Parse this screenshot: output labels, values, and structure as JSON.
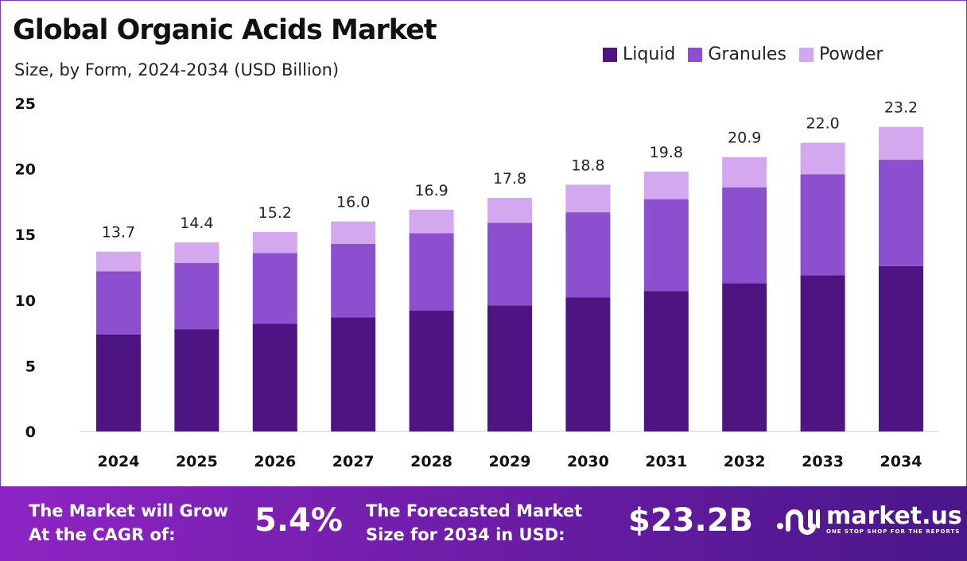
{
  "chart_data": {
    "type": "bar",
    "stacked": true,
    "title": "Global Organic Acids Market",
    "subtitle": "Size, by Form, 2024-2034 (USD Billion)",
    "categories": [
      "2024",
      "2025",
      "2026",
      "2027",
      "2028",
      "2029",
      "2030",
      "2031",
      "2032",
      "2033",
      "2034"
    ],
    "series": [
      {
        "name": "Liquid",
        "color": "#4e1482",
        "values": [
          7.4,
          7.8,
          8.2,
          8.7,
          9.2,
          9.6,
          10.2,
          10.7,
          11.3,
          11.9,
          12.6
        ]
      },
      {
        "name": "Granules",
        "color": "#8c4fd0",
        "values": [
          4.8,
          5.05,
          5.4,
          5.6,
          5.9,
          6.3,
          6.5,
          7.0,
          7.3,
          7.7,
          8.1
        ]
      },
      {
        "name": "Powder",
        "color": "#d3a8ee",
        "values": [
          1.5,
          1.55,
          1.6,
          1.7,
          1.8,
          1.9,
          2.1,
          2.1,
          2.3,
          2.4,
          2.5
        ]
      }
    ],
    "totals": [
      "13.7",
      "14.4",
      "15.2",
      "16.0",
      "16.9",
      "17.8",
      "18.8",
      "19.8",
      "20.9",
      "22.0",
      "23.2"
    ],
    "yticks": [
      "0",
      "5",
      "10",
      "15",
      "20",
      "25"
    ],
    "ylim": [
      0,
      25
    ],
    "grid": false,
    "legend": "top-right"
  },
  "footer": {
    "cagr_label_1": "The Market will Grow",
    "cagr_label_2": "At the CAGR of:",
    "cagr_value": "5.4%",
    "size_label_1": "The Forecasted Market",
    "size_label_2": "Size for 2034 in USD:",
    "size_value": "$23.2B",
    "brand": "market.us",
    "tagline": "ONE STOP SHOP FOR THE REPORTS"
  }
}
